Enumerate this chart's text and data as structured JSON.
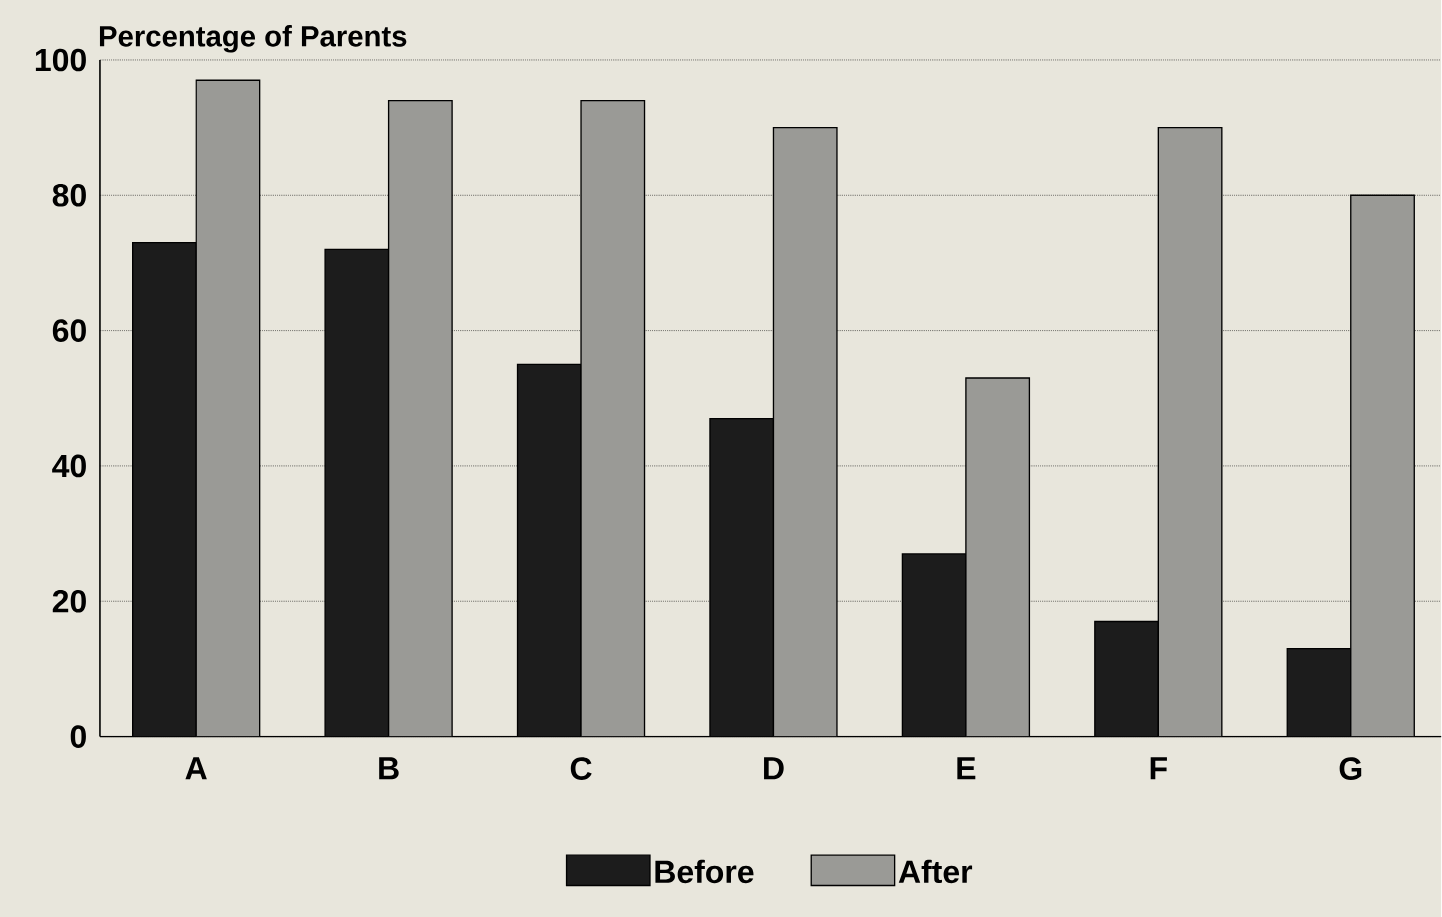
{
  "chart_data": {
    "type": "bar",
    "ylabel": "Percentage of Parents",
    "categories": [
      "A",
      "B",
      "C",
      "D",
      "E",
      "F",
      "G"
    ],
    "series": [
      {
        "name": "Before",
        "color": "#1c1c1c",
        "values": [
          73,
          72,
          55,
          47,
          27,
          17,
          13
        ]
      },
      {
        "name": "After",
        "color": "#9a9a96",
        "values": [
          97,
          94,
          94,
          90,
          53,
          90,
          80
        ]
      }
    ],
    "ylim": [
      0,
      100
    ],
    "yticks": [
      0,
      20,
      40,
      60,
      80,
      100
    ],
    "grid": "y",
    "legend": "bottom"
  }
}
